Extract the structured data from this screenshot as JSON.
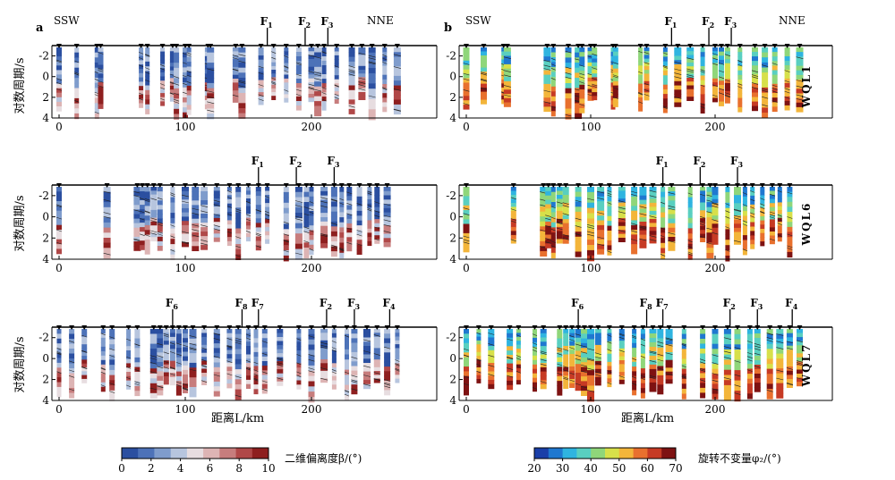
{
  "figure": {
    "panel_labels": [
      "a",
      "b"
    ],
    "direction_left": "SSW",
    "direction_right": "NNE",
    "ylabel": "对数周期/s",
    "xlabel": "距离L/km",
    "x_ticks": [
      "0",
      "100",
      "200"
    ],
    "y_ticks": [
      "-2",
      "0",
      "2",
      "4"
    ],
    "profiles": [
      {
        "name": "WQL1",
        "faults": [
          {
            "label": "F",
            "sub": "1",
            "km": 165
          },
          {
            "label": "F",
            "sub": "2",
            "km": 195
          },
          {
            "label": "F",
            "sub": "3",
            "km": 213
          }
        ]
      },
      {
        "name": "WQL6",
        "faults": [
          {
            "label": "F",
            "sub": "1",
            "km": 158
          },
          {
            "label": "F",
            "sub": "2",
            "km": 188
          },
          {
            "label": "F",
            "sub": "3",
            "km": 218
          }
        ]
      },
      {
        "name": "WQL7",
        "faults": [
          {
            "label": "F",
            "sub": "6",
            "km": 90
          },
          {
            "label": "F",
            "sub": "8",
            "km": 145
          },
          {
            "label": "F",
            "sub": "7",
            "km": 158
          },
          {
            "label": "F",
            "sub": "2",
            "km": 212
          },
          {
            "label": "F",
            "sub": "3",
            "km": 234
          },
          {
            "label": "F",
            "sub": "4",
            "km": 262
          }
        ]
      }
    ],
    "colorbar_left": {
      "title": "二维偏离度β/(°)",
      "ticks": [
        "0",
        "2",
        "4",
        "6",
        "8",
        "10"
      ],
      "colors": [
        "#2b4fa0",
        "#4d72b8",
        "#7f9ccc",
        "#b7c5de",
        "#e7dde0",
        "#ddb4b4",
        "#c77d7d",
        "#b04848",
        "#8e1f1f"
      ]
    },
    "colorbar_right": {
      "title": "旋转不变量φ₂/(°)",
      "ticks": [
        "20",
        "30",
        "40",
        "50",
        "60",
        "70"
      ],
      "colors": [
        "#1a3fa8",
        "#1f78d0",
        "#2fb4e0",
        "#59cfc0",
        "#8fd67a",
        "#d7e04a",
        "#f3b53a",
        "#e8702e",
        "#c63a24",
        "#7e1212"
      ]
    }
  }
}
